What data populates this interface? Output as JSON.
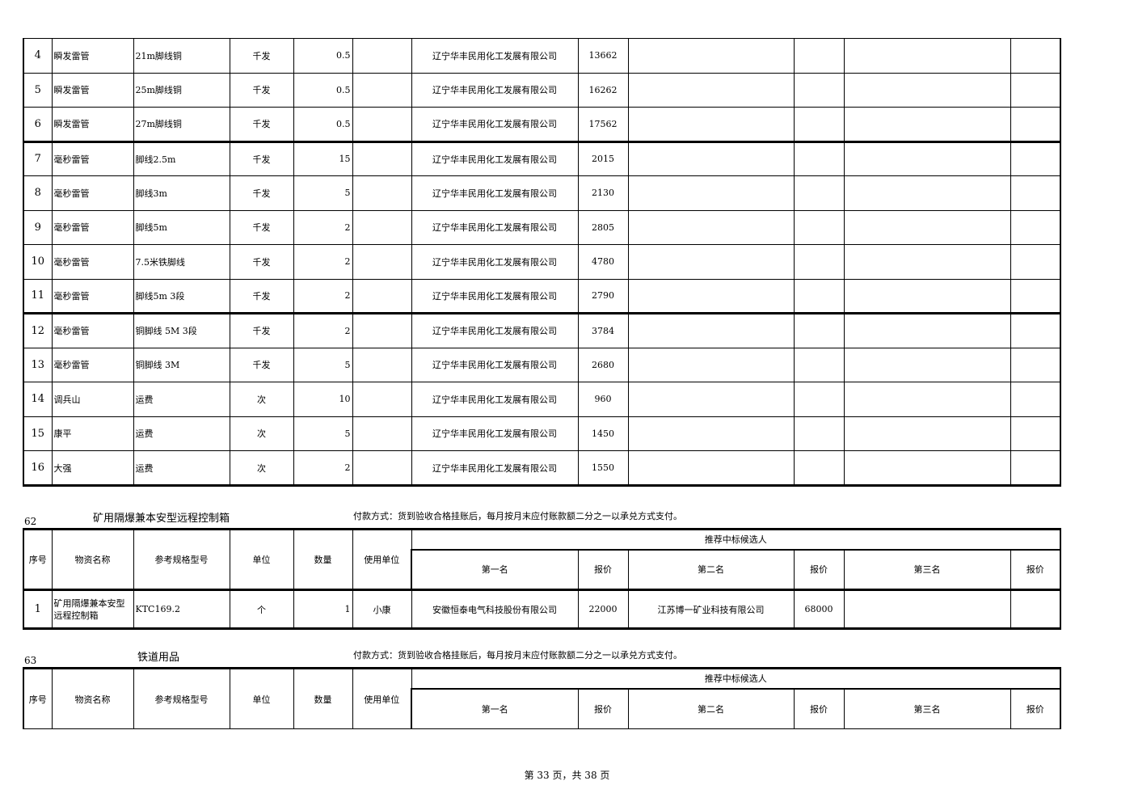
{
  "top_table": {
    "rows": [
      {
        "no": "4",
        "name": "瞬发雷管",
        "spec": "21m脚线铜",
        "unit": "千发",
        "qty": "0.5",
        "user": "",
        "first": "辽宁华丰民用化工发展有限公司",
        "price1": "13662",
        "second": "",
        "price2": "",
        "third": "",
        "price3": ""
      },
      {
        "no": "5",
        "name": "瞬发雷管",
        "spec": "25m脚线铜",
        "unit": "千发",
        "qty": "0.5",
        "user": "",
        "first": "辽宁华丰民用化工发展有限公司",
        "price1": "16262",
        "second": "",
        "price2": "",
        "third": "",
        "price3": ""
      },
      {
        "no": "6",
        "name": "瞬发雷管",
        "spec": "27m脚线铜",
        "unit": "千发",
        "qty": "0.5",
        "user": "",
        "first": "辽宁华丰民用化工发展有限公司",
        "price1": "17562",
        "second": "",
        "price2": "",
        "third": "",
        "price3": ""
      },
      {
        "no": "7",
        "name": "毫秒雷管",
        "spec": "脚线2.5m",
        "unit": "千发",
        "qty": "15",
        "user": "",
        "first": "辽宁华丰民用化工发展有限公司",
        "price1": "2015",
        "second": "",
        "price2": "",
        "third": "",
        "price3": ""
      },
      {
        "no": "8",
        "name": "毫秒雷管",
        "spec": "脚线3m",
        "unit": "千发",
        "qty": "5",
        "user": "",
        "first": "辽宁华丰民用化工发展有限公司",
        "price1": "2130",
        "second": "",
        "price2": "",
        "third": "",
        "price3": ""
      },
      {
        "no": "9",
        "name": "毫秒雷管",
        "spec": "脚线5m",
        "unit": "千发",
        "qty": "2",
        "user": "",
        "first": "辽宁华丰民用化工发展有限公司",
        "price1": "2805",
        "second": "",
        "price2": "",
        "third": "",
        "price3": ""
      },
      {
        "no": "10",
        "name": "毫秒雷管",
        "spec": "7.5米铁脚线",
        "unit": "千发",
        "qty": "2",
        "user": "",
        "first": "辽宁华丰民用化工发展有限公司",
        "price1": "4780",
        "second": "",
        "price2": "",
        "third": "",
        "price3": ""
      },
      {
        "no": "11",
        "name": "毫秒雷管",
        "spec": "脚线5m 3段",
        "unit": "千发",
        "qty": "2",
        "user": "",
        "first": "辽宁华丰民用化工发展有限公司",
        "price1": "2790",
        "second": "",
        "price2": "",
        "third": "",
        "price3": ""
      },
      {
        "no": "12",
        "name": "毫秒雷管",
        "spec": "铜脚线 5M 3段",
        "unit": "千发",
        "qty": "2",
        "user": "",
        "first": "辽宁华丰民用化工发展有限公司",
        "price1": "3784",
        "second": "",
        "price2": "",
        "third": "",
        "price3": ""
      },
      {
        "no": "13",
        "name": "毫秒雷管",
        "spec": "铜脚线 3M",
        "unit": "千发",
        "qty": "5",
        "user": "",
        "first": "辽宁华丰民用化工发展有限公司",
        "price1": "2680",
        "second": "",
        "price2": "",
        "third": "",
        "price3": ""
      },
      {
        "no": "14",
        "name": "调兵山",
        "spec": "运费",
        "unit": "次",
        "qty": "10",
        "user": "",
        "first": "辽宁华丰民用化工发展有限公司",
        "price1": "960",
        "second": "",
        "price2": "",
        "third": "",
        "price3": ""
      },
      {
        "no": "15",
        "name": "康平",
        "spec": "运费",
        "unit": "次",
        "qty": "5",
        "user": "",
        "first": "辽宁华丰民用化工发展有限公司",
        "price1": "1450",
        "second": "",
        "price2": "",
        "third": "",
        "price3": ""
      },
      {
        "no": "16",
        "name": "大强",
        "spec": "运费",
        "unit": "次",
        "qty": "2",
        "user": "",
        "first": "辽宁华丰民用化工发展有限公司",
        "price1": "1550",
        "second": "",
        "price2": "",
        "third": "",
        "price3": ""
      }
    ]
  },
  "headers": {
    "no": "序号",
    "name": "物资名称",
    "spec": "参考规格型号",
    "unit": "单位",
    "qty": "数量",
    "user": "使用单位",
    "recommended": "推荐中标候选人",
    "first": "第一名",
    "price": "报价",
    "second": "第二名",
    "third": "第三名"
  },
  "sections": [
    {
      "number": "62",
      "title": "矿用隔爆兼本安型远程控制箱",
      "payment": "付款方式：货到验收合格挂账后，每月按月末应付账款额二分之一以承兑方式支付。",
      "rows": [
        {
          "no": "1",
          "name": "矿用隔爆兼本安型远程控制箱",
          "spec": "KTC169.2",
          "unit": "个",
          "qty": "1",
          "user": "小康",
          "first": "安徽恒泰电气科技股份有限公司",
          "price1": "22000",
          "second": "江苏博一矿业科技有限公司",
          "price2": "68000",
          "third": "",
          "price3": ""
        }
      ]
    },
    {
      "number": "63",
      "title": "铁道用品",
      "payment": "付款方式：货到验收合格挂账后，每月按月末应付账款额二分之一以承兑方式支付。",
      "rows": []
    }
  ],
  "footer": {
    "text": "第 33 页，共 38 页"
  }
}
